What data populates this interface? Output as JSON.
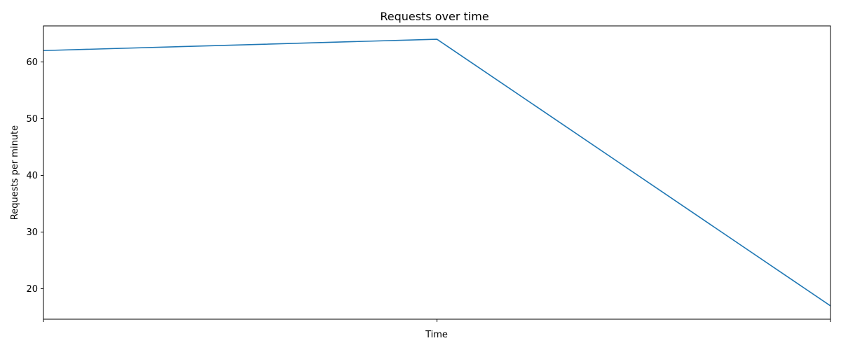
{
  "chart_data": {
    "type": "line",
    "title": "Requests over time",
    "xlabel": "Time",
    "ylabel": "Requests per minute",
    "x": [
      0,
      1,
      2
    ],
    "x_tick_labels": [
      "",
      "",
      ""
    ],
    "series": [
      {
        "values": [
          62,
          64,
          17
        ],
        "color": "#1f77b4"
      }
    ],
    "xlim": [
      0,
      2
    ],
    "ylim": [
      14.65,
      66.35
    ],
    "y_ticks": [
      20,
      30,
      40,
      50,
      60
    ],
    "grid": false,
    "legend": "none"
  }
}
